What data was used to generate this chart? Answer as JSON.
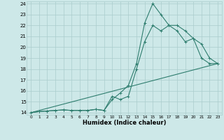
{
  "title": "",
  "xlabel": "Humidex (Indice chaleur)",
  "xlim": [
    -0.5,
    23.5
  ],
  "ylim": [
    13.8,
    24.2
  ],
  "yticks": [
    14,
    15,
    16,
    17,
    18,
    19,
    20,
    21,
    22,
    23,
    24
  ],
  "xticks": [
    0,
    1,
    2,
    3,
    4,
    5,
    6,
    7,
    8,
    9,
    10,
    11,
    12,
    13,
    14,
    15,
    16,
    17,
    18,
    19,
    20,
    21,
    22,
    23
  ],
  "bg_color": "#cde8e8",
  "grid_color": "#aacccc",
  "line_color": "#2e7d6e",
  "line1_x": [
    0,
    1,
    2,
    3,
    4,
    5,
    6,
    7,
    8,
    9,
    10,
    11,
    12,
    13,
    14,
    15,
    16,
    17,
    18,
    19,
    20,
    21,
    22,
    23
  ],
  "line1_y": [
    14.0,
    14.1,
    14.15,
    14.2,
    14.25,
    14.2,
    14.2,
    14.2,
    14.3,
    14.2,
    15.5,
    15.2,
    15.5,
    18.0,
    20.5,
    22.0,
    21.5,
    22.0,
    21.5,
    20.5,
    20.8,
    19.0,
    18.5,
    18.5
  ],
  "line2_x": [
    0,
    1,
    2,
    3,
    4,
    5,
    6,
    7,
    8,
    9,
    10,
    11,
    12,
    13,
    14,
    15,
    16,
    17,
    18,
    19,
    20,
    21,
    22,
    23
  ],
  "line2_y": [
    14.0,
    14.1,
    14.15,
    14.2,
    14.25,
    14.2,
    14.2,
    14.2,
    14.3,
    14.2,
    15.2,
    15.8,
    16.5,
    18.5,
    22.2,
    24.0,
    23.0,
    22.0,
    22.0,
    21.5,
    20.8,
    20.3,
    19.0,
    18.5
  ],
  "line3_x": [
    0,
    23
  ],
  "line3_y": [
    14.0,
    18.5
  ]
}
